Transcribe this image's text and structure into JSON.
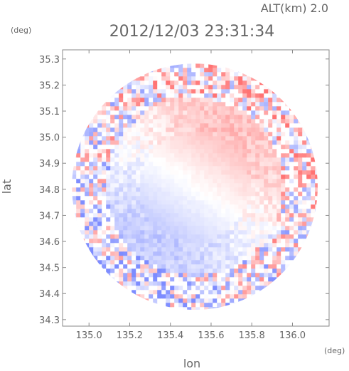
{
  "header": {
    "altitude_label": "ALT(km) 2.0",
    "timestamp": "2012/12/03 23:31:34"
  },
  "chart_data": {
    "type": "heatmap",
    "title": "2012/12/03 23:31:34",
    "subtitle": "ALT(km) 2.0",
    "xlabel": "lon",
    "ylabel": "lat",
    "x_unit": "(deg)",
    "y_unit": "(deg)",
    "xlim": [
      134.87,
      136.18
    ],
    "ylim": [
      34.275,
      35.335
    ],
    "x_ticks": [
      135.0,
      135.2,
      135.4,
      135.6,
      135.8,
      136.0
    ],
    "x_tick_labels": [
      "135.0",
      "135.2",
      "135.4",
      "135.6",
      "135.8",
      "136.0"
    ],
    "y_ticks": [
      34.3,
      34.4,
      34.5,
      34.6,
      34.7,
      34.8,
      34.9,
      35.0,
      35.1,
      35.2,
      35.3
    ],
    "y_tick_labels": [
      "34.3",
      "34.4",
      "34.5",
      "34.6",
      "34.7",
      "34.8",
      "34.9",
      "35.0",
      "35.1",
      "35.2",
      "35.3"
    ],
    "radar_center": [
      135.52,
      34.81
    ],
    "radar_radius_deg": 0.53,
    "grid": false,
    "colors": {
      "positive": "#e84c4c",
      "negative": "#4c62e8",
      "zero": "#ffffff",
      "frame": "#888888"
    }
  }
}
